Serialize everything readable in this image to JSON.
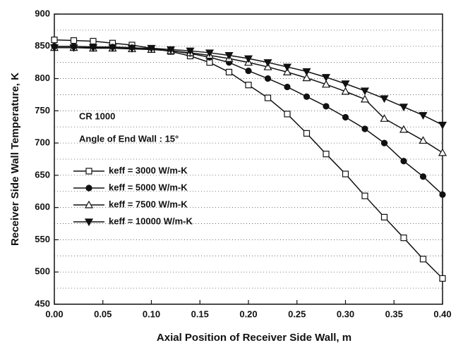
{
  "chart_data": {
    "type": "line",
    "x_label": "Axial Position of Receiver Side Wall, m",
    "y_label": "Receiver Side Wall Temperature, K",
    "annotations": [
      "CR 1000",
      "Angle of End Wall : 15°"
    ],
    "x": [
      0,
      0.02,
      0.04,
      0.06,
      0.08,
      0.1,
      0.12,
      0.14,
      0.16,
      0.18,
      0.2,
      0.22,
      0.24,
      0.26,
      0.28,
      0.3,
      0.32,
      0.34,
      0.36,
      0.38,
      0.4
    ],
    "series": [
      {
        "name": "keff = 3000 W/m-K",
        "color": "#111111",
        "marker": "square",
        "values": [
          860,
          859,
          858,
          855,
          852,
          847,
          842,
          835,
          825,
          810,
          790,
          770,
          745,
          715,
          683,
          652,
          618,
          585,
          553,
          520,
          490
        ]
      },
      {
        "name": "keff = 5000 W/m-K",
        "color": "#111111",
        "marker": "circle",
        "values": [
          850,
          850,
          849,
          849,
          848,
          846,
          843,
          839,
          833,
          825,
          812,
          800,
          787,
          772,
          757,
          740,
          722,
          700,
          672,
          648,
          620
        ]
      },
      {
        "name": "keff = 7500 W/m-K",
        "color": "#111111",
        "marker": "triangle-up",
        "values": [
          848,
          848,
          847,
          847,
          846,
          845,
          843,
          840,
          836,
          831,
          825,
          818,
          810,
          801,
          791,
          780,
          768,
          738,
          721,
          704,
          685
        ]
      },
      {
        "name": "keff = 10000 W/m-K",
        "color": "#111111",
        "marker": "triangle-down",
        "values": [
          848,
          848,
          848,
          848,
          847,
          847,
          845,
          843,
          840,
          836,
          831,
          825,
          818,
          811,
          802,
          792,
          781,
          769,
          756,
          743,
          728
        ]
      }
    ],
    "xlim": [
      0,
      0.4
    ],
    "xticks": [
      {
        "value": 0,
        "label": "0.00"
      },
      0.05,
      {
        "value": 0.1,
        "label": "0.10"
      },
      0.15,
      {
        "value": 0.2,
        "label": "0.20"
      },
      0.25,
      {
        "value": 0.3,
        "label": "0.30"
      },
      0.35,
      {
        "value": 0.4,
        "label": "0.40"
      }
    ],
    "ylim": [
      450,
      900
    ],
    "yticks": [
      450,
      500,
      550,
      600,
      650,
      700,
      750,
      800,
      850,
      900
    ],
    "minor_yticks": [
      475,
      525,
      575,
      625,
      675,
      725,
      775,
      825,
      875
    ],
    "grid": true,
    "legend": "left"
  }
}
